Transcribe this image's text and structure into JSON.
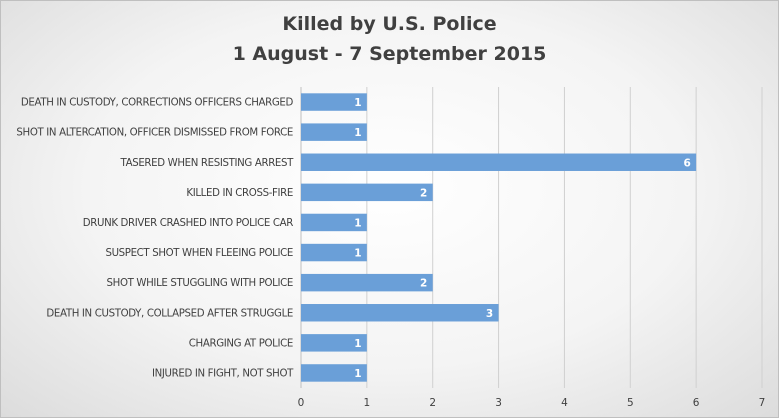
{
  "chart_data": {
    "type": "bar",
    "orientation": "horizontal",
    "title_lines": [
      "Killed by U.S. Police",
      "1 August - 7 September 2015"
    ],
    "categories": [
      "DEATH IN CUSTODY, CORRECTIONS OFFICERS CHARGED",
      "SHOT IN ALTERCATION, OFFICER DISMISSED FROM FORCE",
      "TASERED WHEN RESISTING ARREST",
      "KILLED IN CROSS-FIRE",
      "DRUNK DRIVER CRASHED INTO POLICE CAR",
      "SUSPECT SHOT WHEN FLEEING POLICE",
      "SHOT WHILE STUGGLING WITH POLICE",
      "DEATH IN CUSTODY, COLLAPSED AFTER STRUGGLE",
      "CHARGING AT POLICE",
      "INJURED IN FIGHT, NOT SHOT"
    ],
    "values": [
      1,
      1,
      6,
      2,
      1,
      1,
      2,
      3,
      1,
      1
    ],
    "xlim": [
      0,
      7
    ],
    "x_ticks": [
      "0",
      "1",
      "2",
      "3",
      "4",
      "5",
      "6",
      "7"
    ],
    "data_labels": [
      "1",
      "1",
      "6",
      "2",
      "1",
      "1",
      "2",
      "3",
      "1",
      "1"
    ],
    "grid": "vertical",
    "legend": "none",
    "bar_color": "#6a9fd8"
  }
}
